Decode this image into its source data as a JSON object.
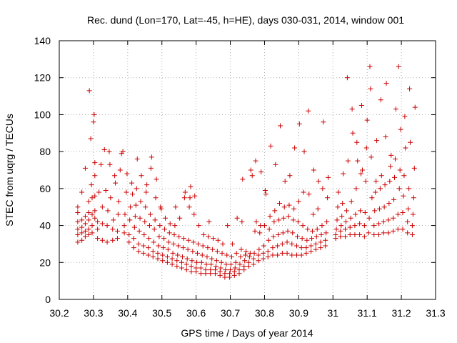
{
  "chart_data": {
    "type": "scatter",
    "title": "Rec. dund (Lon=170, Lat=-45, h=HE), days 030-031, 2014, window 001",
    "xlabel": "GPS time / Days of year 2014",
    "ylabel": "STEC from uqrg / TECUs",
    "xlim": [
      30.2,
      31.3
    ],
    "ylim": [
      0,
      140
    ],
    "x_ticks": [
      "30.2",
      "30.3",
      "30.4",
      "30.5",
      "30.6",
      "30.7",
      "30.8",
      "30.9",
      "31",
      "31.1",
      "31.2",
      "31.3"
    ],
    "y_ticks": [
      "0",
      "20",
      "40",
      "60",
      "80",
      "100",
      "120",
      "140"
    ],
    "grid": true,
    "legend": "none",
    "marker": "plus",
    "color": "#cc0000",
    "points": [
      [
        30.254,
        31
      ],
      [
        30.254,
        35
      ],
      [
        30.254,
        38
      ],
      [
        30.254,
        42
      ],
      [
        30.254,
        47
      ],
      [
        30.254,
        50
      ],
      [
        30.266,
        32
      ],
      [
        30.266,
        36
      ],
      [
        30.266,
        39
      ],
      [
        30.266,
        43
      ],
      [
        30.266,
        58
      ],
      [
        30.276,
        34
      ],
      [
        30.276,
        37
      ],
      [
        30.276,
        41
      ],
      [
        30.276,
        45
      ],
      [
        30.276,
        71
      ],
      [
        30.286,
        35
      ],
      [
        30.286,
        38
      ],
      [
        30.286,
        43
      ],
      [
        30.286,
        47
      ],
      [
        30.286,
        53
      ],
      [
        30.288,
        113
      ],
      [
        30.296,
        36
      ],
      [
        30.296,
        40
      ],
      [
        30.296,
        46
      ],
      [
        30.296,
        55
      ],
      [
        30.294,
        62
      ],
      [
        30.292,
        87
      ],
      [
        30.3,
        96
      ],
      [
        30.302,
        100
      ],
      [
        30.304,
        44
      ],
      [
        30.304,
        48
      ],
      [
        30.304,
        56
      ],
      [
        30.304,
        67
      ],
      [
        30.304,
        74
      ],
      [
        30.312,
        33
      ],
      [
        30.312,
        38
      ],
      [
        30.312,
        42
      ],
      [
        30.316,
        58
      ],
      [
        30.322,
        73
      ],
      [
        30.326,
        32
      ],
      [
        30.326,
        41
      ],
      [
        30.326,
        50
      ],
      [
        30.332,
        81
      ],
      [
        30.336,
        59
      ],
      [
        30.34,
        31
      ],
      [
        30.34,
        40
      ],
      [
        30.342,
        48
      ],
      [
        30.346,
        80
      ],
      [
        30.348,
        73
      ],
      [
        30.35,
        55
      ],
      [
        30.356,
        32
      ],
      [
        30.356,
        38
      ],
      [
        30.358,
        43
      ],
      [
        30.362,
        67
      ],
      [
        30.364,
        63
      ],
      [
        30.37,
        33
      ],
      [
        30.37,
        37
      ],
      [
        30.372,
        46
      ],
      [
        30.374,
        53
      ],
      [
        30.378,
        70
      ],
      [
        30.382,
        79
      ],
      [
        30.386,
        80
      ],
      [
        30.39,
        36
      ],
      [
        30.39,
        40
      ],
      [
        30.392,
        46
      ],
      [
        30.396,
        58
      ],
      [
        30.398,
        68
      ],
      [
        30.404,
        31
      ],
      [
        30.404,
        35
      ],
      [
        30.406,
        43
      ],
      [
        30.408,
        50
      ],
      [
        30.412,
        63
      ],
      [
        30.414,
        57
      ],
      [
        30.418,
        28
      ],
      [
        30.418,
        33
      ],
      [
        30.42,
        39
      ],
      [
        30.422,
        45
      ],
      [
        30.424,
        51
      ],
      [
        30.426,
        60
      ],
      [
        30.428,
        76
      ],
      [
        30.432,
        26
      ],
      [
        30.432,
        30
      ],
      [
        30.434,
        37
      ],
      [
        30.436,
        44
      ],
      [
        30.438,
        53
      ],
      [
        30.44,
        67
      ],
      [
        30.446,
        25
      ],
      [
        30.446,
        29
      ],
      [
        30.448,
        35
      ],
      [
        30.45,
        42
      ],
      [
        30.452,
        50
      ],
      [
        30.454,
        58
      ],
      [
        30.456,
        62
      ],
      [
        30.46,
        24
      ],
      [
        30.46,
        28
      ],
      [
        30.462,
        33
      ],
      [
        30.464,
        40
      ],
      [
        30.466,
        46
      ],
      [
        30.468,
        71
      ],
      [
        30.47,
        77
      ],
      [
        30.474,
        23
      ],
      [
        30.474,
        26
      ],
      [
        30.476,
        31
      ],
      [
        30.478,
        38
      ],
      [
        30.48,
        43
      ],
      [
        30.482,
        55
      ],
      [
        30.484,
        65
      ],
      [
        30.488,
        22
      ],
      [
        30.488,
        25
      ],
      [
        30.49,
        29
      ],
      [
        30.492,
        34
      ],
      [
        30.494,
        40
      ],
      [
        30.496,
        50
      ],
      [
        30.498,
        49
      ],
      [
        30.502,
        21
      ],
      [
        30.502,
        24
      ],
      [
        30.504,
        28
      ],
      [
        30.506,
        33
      ],
      [
        30.508,
        38
      ],
      [
        30.51,
        44
      ],
      [
        30.516,
        20
      ],
      [
        30.516,
        23
      ],
      [
        30.518,
        27
      ],
      [
        30.52,
        31
      ],
      [
        30.522,
        36
      ],
      [
        30.524,
        41
      ],
      [
        30.53,
        19
      ],
      [
        30.53,
        22
      ],
      [
        30.532,
        25
      ],
      [
        30.534,
        30
      ],
      [
        30.536,
        35
      ],
      [
        30.538,
        40
      ],
      [
        30.54,
        50
      ],
      [
        30.544,
        18
      ],
      [
        30.544,
        21
      ],
      [
        30.546,
        24
      ],
      [
        30.548,
        29
      ],
      [
        30.55,
        34
      ],
      [
        30.552,
        44
      ],
      [
        30.558,
        17
      ],
      [
        30.558,
        20
      ],
      [
        30.56,
        23
      ],
      [
        30.562,
        28
      ],
      [
        30.564,
        33
      ],
      [
        30.566,
        55
      ],
      [
        30.568,
        58
      ],
      [
        30.572,
        16
      ],
      [
        30.572,
        19
      ],
      [
        30.574,
        22
      ],
      [
        30.576,
        27
      ],
      [
        30.578,
        32
      ],
      [
        30.58,
        50
      ],
      [
        30.582,
        55
      ],
      [
        30.584,
        61
      ],
      [
        30.586,
        15
      ],
      [
        30.586,
        18
      ],
      [
        30.588,
        21
      ],
      [
        30.59,
        26
      ],
      [
        30.592,
        31
      ],
      [
        30.594,
        46
      ],
      [
        30.596,
        56
      ],
      [
        30.6,
        15
      ],
      [
        30.6,
        17
      ],
      [
        30.602,
        20
      ],
      [
        30.604,
        25
      ],
      [
        30.606,
        30
      ],
      [
        30.608,
        40
      ],
      [
        30.614,
        14
      ],
      [
        30.614,
        17
      ],
      [
        30.616,
        20
      ],
      [
        30.618,
        24
      ],
      [
        30.62,
        29
      ],
      [
        30.622,
        35
      ],
      [
        30.628,
        14
      ],
      [
        30.628,
        16
      ],
      [
        30.63,
        19
      ],
      [
        30.632,
        23
      ],
      [
        30.634,
        28
      ],
      [
        30.636,
        34
      ],
      [
        30.638,
        42
      ],
      [
        30.642,
        14
      ],
      [
        30.642,
        16
      ],
      [
        30.644,
        19
      ],
      [
        30.646,
        22
      ],
      [
        30.648,
        27
      ],
      [
        30.65,
        33
      ],
      [
        30.656,
        14
      ],
      [
        30.656,
        16
      ],
      [
        30.658,
        18
      ],
      [
        30.66,
        21
      ],
      [
        30.662,
        26
      ],
      [
        30.664,
        32
      ],
      [
        30.67,
        13
      ],
      [
        30.67,
        15
      ],
      [
        30.672,
        17
      ],
      [
        30.674,
        20
      ],
      [
        30.676,
        25
      ],
      [
        30.678,
        30
      ],
      [
        30.684,
        12
      ],
      [
        30.684,
        14
      ],
      [
        30.686,
        16
      ],
      [
        30.688,
        19
      ],
      [
        30.69,
        24
      ],
      [
        30.692,
        40
      ],
      [
        30.698,
        12
      ],
      [
        30.698,
        14
      ],
      [
        30.7,
        16
      ],
      [
        30.702,
        19
      ],
      [
        30.704,
        23
      ],
      [
        30.706,
        30
      ],
      [
        30.712,
        13
      ],
      [
        30.712,
        15
      ],
      [
        30.714,
        17
      ],
      [
        30.716,
        20
      ],
      [
        30.718,
        25
      ],
      [
        30.72,
        44
      ],
      [
        30.726,
        14
      ],
      [
        30.726,
        16
      ],
      [
        30.728,
        19
      ],
      [
        30.73,
        23
      ],
      [
        30.732,
        27
      ],
      [
        30.734,
        42
      ],
      [
        30.736,
        65
      ],
      [
        30.74,
        16
      ],
      [
        30.74,
        18
      ],
      [
        30.742,
        21
      ],
      [
        30.744,
        24
      ],
      [
        30.746,
        26
      ],
      [
        30.754,
        18
      ],
      [
        30.754,
        20
      ],
      [
        30.756,
        23
      ],
      [
        30.758,
        25
      ],
      [
        30.76,
        70
      ],
      [
        30.764,
        67
      ],
      [
        30.768,
        19
      ],
      [
        30.768,
        22
      ],
      [
        30.77,
        25
      ],
      [
        30.772,
        37
      ],
      [
        30.774,
        75
      ],
      [
        30.776,
        42
      ],
      [
        30.782,
        21
      ],
      [
        30.782,
        24
      ],
      [
        30.784,
        27
      ],
      [
        30.786,
        36
      ],
      [
        30.788,
        40
      ],
      [
        30.79,
        69
      ],
      [
        30.796,
        22
      ],
      [
        30.796,
        25
      ],
      [
        30.798,
        29
      ],
      [
        30.8,
        40
      ],
      [
        30.802,
        59
      ],
      [
        30.804,
        57
      ],
      [
        30.81,
        23
      ],
      [
        30.81,
        26
      ],
      [
        30.812,
        32
      ],
      [
        30.814,
        38
      ],
      [
        30.816,
        45
      ],
      [
        30.818,
        83
      ],
      [
        30.824,
        24
      ],
      [
        30.824,
        28
      ],
      [
        30.826,
        34
      ],
      [
        30.828,
        42
      ],
      [
        30.83,
        48
      ],
      [
        30.832,
        73
      ],
      [
        30.838,
        24
      ],
      [
        30.838,
        29
      ],
      [
        30.84,
        35
      ],
      [
        30.842,
        43
      ],
      [
        30.844,
        52
      ],
      [
        30.846,
        94
      ],
      [
        30.852,
        25
      ],
      [
        30.852,
        30
      ],
      [
        30.854,
        36
      ],
      [
        30.856,
        44
      ],
      [
        30.858,
        50
      ],
      [
        30.86,
        64
      ],
      [
        30.866,
        25
      ],
      [
        30.866,
        31
      ],
      [
        30.868,
        37
      ],
      [
        30.87,
        45
      ],
      [
        30.872,
        51
      ],
      [
        30.874,
        67
      ],
      [
        30.88,
        24
      ],
      [
        30.88,
        30
      ],
      [
        30.882,
        36
      ],
      [
        30.884,
        43
      ],
      [
        30.886,
        49
      ],
      [
        30.888,
        82
      ],
      [
        30.894,
        24
      ],
      [
        30.894,
        29
      ],
      [
        30.896,
        34
      ],
      [
        30.898,
        42
      ],
      [
        30.9,
        53
      ],
      [
        30.902,
        95
      ],
      [
        30.908,
        24
      ],
      [
        30.908,
        28
      ],
      [
        30.91,
        33
      ],
      [
        30.912,
        40
      ],
      [
        30.914,
        58
      ],
      [
        30.916,
        80
      ],
      [
        30.922,
        25
      ],
      [
        30.922,
        28
      ],
      [
        30.924,
        32
      ],
      [
        30.926,
        38
      ],
      [
        30.928,
        102
      ],
      [
        30.93,
        57
      ],
      [
        30.936,
        26
      ],
      [
        30.936,
        29
      ],
      [
        30.938,
        33
      ],
      [
        30.94,
        37
      ],
      [
        30.942,
        46
      ],
      [
        30.944,
        70
      ],
      [
        30.95,
        27
      ],
      [
        30.95,
        30
      ],
      [
        30.952,
        34
      ],
      [
        30.954,
        38
      ],
      [
        30.956,
        49
      ],
      [
        30.958,
        64
      ],
      [
        30.964,
        28
      ],
      [
        30.964,
        31
      ],
      [
        30.966,
        35
      ],
      [
        30.968,
        40
      ],
      [
        30.97,
        60
      ],
      [
        30.972,
        96
      ],
      [
        30.978,
        29
      ],
      [
        30.978,
        32
      ],
      [
        30.98,
        36
      ],
      [
        30.982,
        42
      ],
      [
        30.984,
        55
      ],
      [
        30.986,
        66
      ],
      [
        31.008,
        33
      ],
      [
        31.008,
        35
      ],
      [
        31.01,
        38
      ],
      [
        31.012,
        43
      ],
      [
        31.014,
        50
      ],
      [
        31.016,
        58
      ],
      [
        31.022,
        34
      ],
      [
        31.022,
        37
      ],
      [
        31.024,
        40
      ],
      [
        31.026,
        45
      ],
      [
        31.028,
        52
      ],
      [
        31.03,
        68
      ],
      [
        31.036,
        34
      ],
      [
        31.036,
        38
      ],
      [
        31.038,
        42
      ],
      [
        31.04,
        48
      ],
      [
        31.042,
        120
      ],
      [
        31.044,
        75
      ],
      [
        31.05,
        35
      ],
      [
        31.05,
        39
      ],
      [
        31.052,
        44
      ],
      [
        31.054,
        53
      ],
      [
        31.056,
        103
      ],
      [
        31.058,
        90
      ],
      [
        31.064,
        35
      ],
      [
        31.064,
        40
      ],
      [
        31.066,
        46
      ],
      [
        31.068,
        60
      ],
      [
        31.07,
        85
      ],
      [
        31.072,
        75
      ],
      [
        31.078,
        35
      ],
      [
        31.078,
        41
      ],
      [
        31.08,
        48
      ],
      [
        31.082,
        68
      ],
      [
        31.084,
        105
      ],
      [
        31.086,
        70
      ],
      [
        31.092,
        34
      ],
      [
        31.092,
        40
      ],
      [
        31.094,
        47
      ],
      [
        31.096,
        64
      ],
      [
        31.098,
        82
      ],
      [
        31.1,
        97
      ],
      [
        31.104,
        36
      ],
      [
        31.106,
        44
      ],
      [
        31.108,
        126
      ],
      [
        31.11,
        114
      ],
      [
        31.112,
        77
      ],
      [
        31.114,
        55
      ],
      [
        31.12,
        35
      ],
      [
        31.12,
        40
      ],
      [
        31.122,
        48
      ],
      [
        31.124,
        58
      ],
      [
        31.126,
        64
      ],
      [
        31.128,
        86
      ],
      [
        31.134,
        35
      ],
      [
        31.134,
        41
      ],
      [
        31.136,
        49
      ],
      [
        31.138,
        60
      ],
      [
        31.14,
        108
      ],
      [
        31.142,
        67
      ],
      [
        31.148,
        36
      ],
      [
        31.148,
        42
      ],
      [
        31.15,
        50
      ],
      [
        31.152,
        62
      ],
      [
        31.154,
        88
      ],
      [
        31.156,
        117
      ],
      [
        31.162,
        36
      ],
      [
        31.162,
        43
      ],
      [
        31.164,
        52
      ],
      [
        31.166,
        64
      ],
      [
        31.168,
        72
      ],
      [
        31.17,
        78
      ],
      [
        31.176,
        37
      ],
      [
        31.176,
        44
      ],
      [
        31.178,
        54
      ],
      [
        31.18,
        66
      ],
      [
        31.182,
        76
      ],
      [
        31.184,
        103
      ],
      [
        31.19,
        38
      ],
      [
        31.19,
        46
      ],
      [
        31.192,
        126
      ],
      [
        31.194,
        60
      ],
      [
        31.196,
        70
      ],
      [
        31.198,
        92
      ],
      [
        31.204,
        38
      ],
      [
        31.204,
        47
      ],
      [
        31.206,
        56
      ],
      [
        31.208,
        67
      ],
      [
        31.21,
        99
      ],
      [
        31.212,
        82
      ],
      [
        31.218,
        36
      ],
      [
        31.218,
        42
      ],
      [
        31.22,
        49
      ],
      [
        31.222,
        60
      ],
      [
        31.224,
        114
      ],
      [
        31.226,
        85
      ],
      [
        31.232,
        35
      ],
      [
        31.232,
        40
      ],
      [
        31.234,
        46
      ],
      [
        31.236,
        55
      ],
      [
        31.238,
        71
      ],
      [
        31.24,
        104
      ]
    ]
  }
}
